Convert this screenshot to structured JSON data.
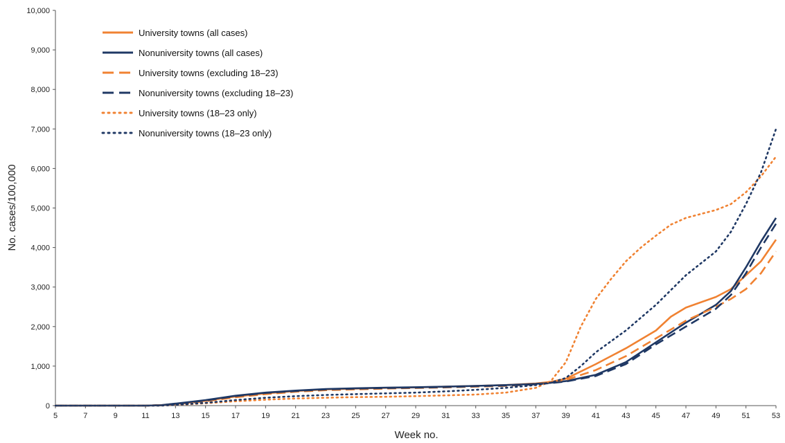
{
  "chart_data": {
    "type": "line",
    "xlabel": "Week no.",
    "ylabel": "No. cases/100,000",
    "xlim": [
      5,
      53
    ],
    "ylim": [
      0,
      10000
    ],
    "x_ticks": [
      "5",
      "7",
      "9",
      "11",
      "13",
      "15",
      "17",
      "19",
      "21",
      "23",
      "25",
      "27",
      "29",
      "31",
      "33",
      "35",
      "37",
      "39",
      "41",
      "43",
      "45",
      "47",
      "49",
      "51",
      "53"
    ],
    "y_ticks": [
      "0",
      "1,000",
      "2,000",
      "3,000",
      "4,000",
      "5,000",
      "6,000",
      "7,000",
      "8,000",
      "9,000",
      "10,000"
    ],
    "legend_position": "top-left",
    "grid": false,
    "series": [
      {
        "name": "University towns (all cases)",
        "color": "#F08232",
        "style": "solid",
        "points": [
          [
            5,
            0
          ],
          [
            11,
            0
          ],
          [
            12,
            10
          ],
          [
            13,
            40
          ],
          [
            15,
            120
          ],
          [
            17,
            230
          ],
          [
            19,
            310
          ],
          [
            21,
            370
          ],
          [
            23,
            410
          ],
          [
            25,
            430
          ],
          [
            27,
            450
          ],
          [
            29,
            460
          ],
          [
            31,
            480
          ],
          [
            33,
            500
          ],
          [
            35,
            520
          ],
          [
            37,
            560
          ],
          [
            38,
            600
          ],
          [
            39,
            680
          ],
          [
            41,
            1050
          ],
          [
            43,
            1450
          ],
          [
            45,
            1900
          ],
          [
            46,
            2250
          ],
          [
            47,
            2480
          ],
          [
            49,
            2750
          ],
          [
            50,
            2950
          ],
          [
            51,
            3300
          ],
          [
            52,
            3650
          ],
          [
            53,
            4200
          ]
        ]
      },
      {
        "name": "Nonuniversity towns (all cases)",
        "color": "#1F3864",
        "style": "solid",
        "points": [
          [
            5,
            0
          ],
          [
            11,
            0
          ],
          [
            12,
            10
          ],
          [
            13,
            50
          ],
          [
            15,
            140
          ],
          [
            17,
            250
          ],
          [
            19,
            330
          ],
          [
            21,
            380
          ],
          [
            23,
            420
          ],
          [
            25,
            440
          ],
          [
            27,
            455
          ],
          [
            29,
            465
          ],
          [
            31,
            480
          ],
          [
            33,
            500
          ],
          [
            35,
            520
          ],
          [
            37,
            550
          ],
          [
            38,
            580
          ],
          [
            39,
            620
          ],
          [
            41,
            780
          ],
          [
            43,
            1100
          ],
          [
            45,
            1600
          ],
          [
            47,
            2100
          ],
          [
            49,
            2550
          ],
          [
            50,
            2900
          ],
          [
            51,
            3500
          ],
          [
            52,
            4150
          ],
          [
            53,
            4750
          ]
        ]
      },
      {
        "name": "University towns (excluding 18–23)",
        "color": "#F08232",
        "style": "dashed",
        "points": [
          [
            5,
            0
          ],
          [
            11,
            0
          ],
          [
            12,
            10
          ],
          [
            13,
            35
          ],
          [
            15,
            110
          ],
          [
            17,
            210
          ],
          [
            19,
            290
          ],
          [
            21,
            350
          ],
          [
            23,
            390
          ],
          [
            25,
            410
          ],
          [
            27,
            430
          ],
          [
            29,
            445
          ],
          [
            31,
            460
          ],
          [
            33,
            480
          ],
          [
            35,
            500
          ],
          [
            37,
            540
          ],
          [
            38,
            580
          ],
          [
            39,
            650
          ],
          [
            41,
            900
          ],
          [
            43,
            1250
          ],
          [
            45,
            1700
          ],
          [
            47,
            2150
          ],
          [
            49,
            2500
          ],
          [
            50,
            2700
          ],
          [
            51,
            2950
          ],
          [
            52,
            3350
          ],
          [
            53,
            3900
          ]
        ]
      },
      {
        "name": "Nonuniversity towns (excluding 18–23)",
        "color": "#1F3864",
        "style": "dashed",
        "points": [
          [
            5,
            0
          ],
          [
            11,
            0
          ],
          [
            12,
            10
          ],
          [
            13,
            45
          ],
          [
            15,
            130
          ],
          [
            17,
            240
          ],
          [
            19,
            320
          ],
          [
            21,
            370
          ],
          [
            23,
            410
          ],
          [
            25,
            430
          ],
          [
            27,
            445
          ],
          [
            29,
            455
          ],
          [
            31,
            470
          ],
          [
            33,
            490
          ],
          [
            35,
            510
          ],
          [
            37,
            540
          ],
          [
            38,
            570
          ],
          [
            39,
            610
          ],
          [
            41,
            750
          ],
          [
            43,
            1050
          ],
          [
            45,
            1550
          ],
          [
            47,
            2000
          ],
          [
            49,
            2450
          ],
          [
            50,
            2800
          ],
          [
            51,
            3350
          ],
          [
            52,
            4000
          ],
          [
            53,
            4600
          ]
        ]
      },
      {
        "name": "University towns (18–23 only)",
        "color": "#F08232",
        "style": "dotted",
        "points": [
          [
            5,
            0
          ],
          [
            12,
            0
          ],
          [
            13,
            15
          ],
          [
            15,
            60
          ],
          [
            17,
            110
          ],
          [
            19,
            150
          ],
          [
            21,
            180
          ],
          [
            23,
            200
          ],
          [
            25,
            215
          ],
          [
            27,
            225
          ],
          [
            29,
            240
          ],
          [
            31,
            260
          ],
          [
            33,
            280
          ],
          [
            35,
            330
          ],
          [
            37,
            450
          ],
          [
            38,
            620
          ],
          [
            39,
            1100
          ],
          [
            40,
            2000
          ],
          [
            41,
            2700
          ],
          [
            42,
            3200
          ],
          [
            43,
            3650
          ],
          [
            44,
            4000
          ],
          [
            45,
            4300
          ],
          [
            46,
            4580
          ],
          [
            47,
            4750
          ],
          [
            49,
            4950
          ],
          [
            50,
            5100
          ],
          [
            51,
            5400
          ],
          [
            52,
            5800
          ],
          [
            53,
            6300
          ]
        ]
      },
      {
        "name": "Nonuniversity towns (18–23 only)",
        "color": "#1F3864",
        "style": "dotted",
        "points": [
          [
            5,
            0
          ],
          [
            12,
            0
          ],
          [
            13,
            20
          ],
          [
            15,
            70
          ],
          [
            17,
            140
          ],
          [
            19,
            200
          ],
          [
            21,
            240
          ],
          [
            23,
            270
          ],
          [
            25,
            290
          ],
          [
            27,
            310
          ],
          [
            29,
            330
          ],
          [
            31,
            360
          ],
          [
            33,
            400
          ],
          [
            35,
            450
          ],
          [
            37,
            520
          ],
          [
            38,
            580
          ],
          [
            39,
            700
          ],
          [
            40,
            1000
          ],
          [
            41,
            1350
          ],
          [
            43,
            1900
          ],
          [
            45,
            2550
          ],
          [
            47,
            3300
          ],
          [
            49,
            3900
          ],
          [
            50,
            4400
          ],
          [
            51,
            5100
          ],
          [
            52,
            5900
          ],
          [
            53,
            7000
          ]
        ]
      }
    ]
  }
}
